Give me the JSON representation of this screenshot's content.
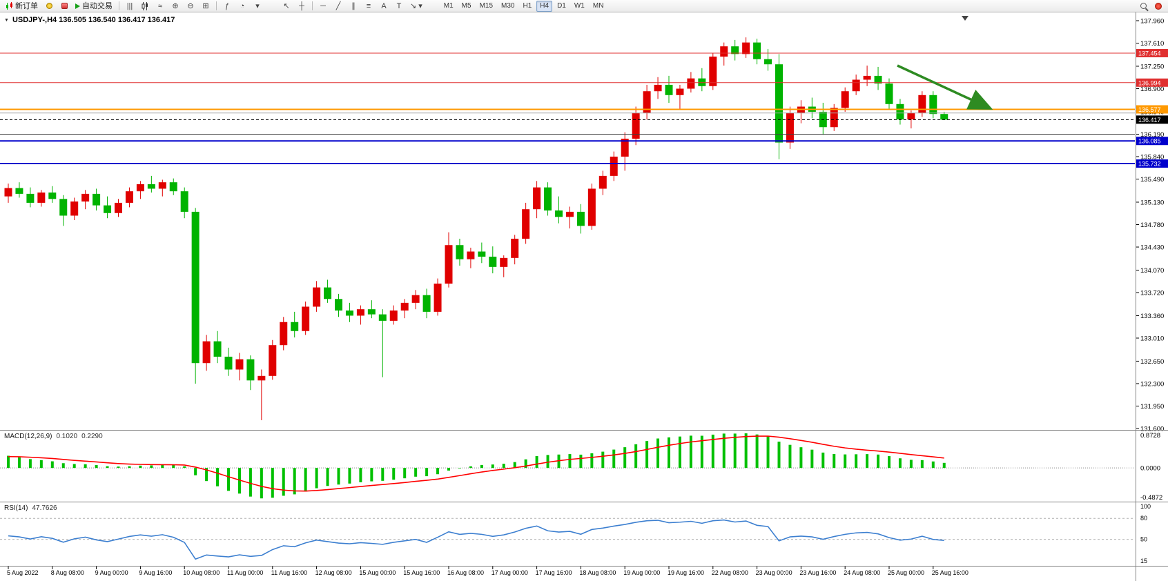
{
  "toolbar": {
    "new_order_label": "新订单",
    "autotrading_label": "自动交易",
    "timeframes": [
      "M1",
      "M5",
      "M15",
      "M30",
      "H1",
      "H4",
      "D1",
      "W1",
      "MN"
    ],
    "active_timeframe": "H4",
    "icons": {
      "dropdown": "▾",
      "bar_chart": "|||",
      "line_chart": "≈",
      "zoom_in": "⊕",
      "zoom_out": "⊖",
      "tile_windows": "⊞",
      "indicators": "ƒ",
      "clock": "◔",
      "cursor": "↖",
      "crosshair": "┼",
      "hline_tool": "─",
      "trendline_tool": "╱",
      "channel_tool": "∥",
      "fibo_tool": "≡",
      "text_tool": "A",
      "label_tool": "T",
      "arrows_tool": "↘"
    }
  },
  "chart": {
    "symbol_header": "USDJPY-,H4  136.505 136.540 136.417 136.417",
    "colors": {
      "up": "#e00000",
      "down": "#00b300",
      "background": "#ffffff",
      "axis_text": "#000000"
    },
    "hlines": [
      {
        "price": 137.454,
        "label": "137.454",
        "color": "#e03030",
        "width": 1
      },
      {
        "price": 136.994,
        "label": "136.994",
        "color": "#e03030",
        "width": 1
      },
      {
        "price": 136.577,
        "label": "136.577",
        "color": "#ff9900",
        "width": 2
      },
      {
        "price": 136.52,
        "label": "",
        "color": "#a8a8a8",
        "width": 1
      },
      {
        "price": 136.417,
        "label": "136.417",
        "color": "#000000",
        "width": 1,
        "dash": "4,3"
      },
      {
        "price": 136.19,
        "label": "",
        "color": "#404040",
        "width": 1
      },
      {
        "price": 136.085,
        "label": "136.085",
        "color": "#0000cc",
        "width": 2
      },
      {
        "price": 135.732,
        "label": "135.732",
        "color": "#0000cc",
        "width": 2
      }
    ],
    "arrow_annotation": {
      "color": "#2e8b22"
    }
  },
  "price_axis": {
    "labels": [
      "137.960",
      "137.610",
      "137.250",
      "136.900",
      "136.540",
      "136.190",
      "135.840",
      "135.490",
      "135.130",
      "134.780",
      "134.430",
      "134.070",
      "133.720",
      "133.360",
      "133.010",
      "132.650",
      "132.300",
      "131.950",
      "131.600"
    ]
  },
  "time_axis": {
    "labels": [
      "5 Aug 2022",
      "8 Aug 08:00",
      "9 Aug 00:00",
      "9 Aug 16:00",
      "10 Aug 08:00",
      "11 Aug 00:00",
      "11 Aug 16:00",
      "12 Aug 08:00",
      "15 Aug 00:00",
      "15 Aug 16:00",
      "16 Aug 08:00",
      "17 Aug 00:00",
      "17 Aug 16:00",
      "18 Aug 08:00",
      "19 Aug 00:00",
      "19 Aug 16:00",
      "22 Aug 08:00",
      "23 Aug 00:00",
      "23 Aug 16:00",
      "24 Aug 08:00",
      "25 Aug 00:00",
      "25 Aug 16:00"
    ]
  },
  "macd": {
    "label": "MACD(12,26,9)",
    "value_main": "0.1020",
    "value_signal": "0.2290",
    "axis_top": "0.8728",
    "axis_zero": "0.0000",
    "axis_bottom": "-0.4872",
    "histogram_color": "#00c000",
    "signal_color": "#ff0000"
  },
  "rsi": {
    "label": "RSI(14)",
    "value": "47.7626",
    "axis_labels": [
      "100",
      "80",
      "50",
      "15"
    ],
    "levels": [
      80,
      50
    ],
    "line_color": "#3c7fd0"
  },
  "chart_data": {
    "type": "candlestick",
    "symbol": "USDJPY-",
    "timeframe": "H4",
    "y_range": [
      131.6,
      137.96
    ],
    "x_label_every": 4,
    "ohlc": [
      [
        135.22,
        135.42,
        135.12,
        135.35
      ],
      [
        135.35,
        135.44,
        135.2,
        135.26
      ],
      [
        135.26,
        135.36,
        135.05,
        135.12
      ],
      [
        135.12,
        135.32,
        135.06,
        135.28
      ],
      [
        135.28,
        135.38,
        135.12,
        135.18
      ],
      [
        135.18,
        135.24,
        134.76,
        134.92
      ],
      [
        134.92,
        135.2,
        134.85,
        135.14
      ],
      [
        135.14,
        135.32,
        135.02,
        135.26
      ],
      [
        135.26,
        135.34,
        135.0,
        135.08
      ],
      [
        135.08,
        135.22,
        134.88,
        134.96
      ],
      [
        134.96,
        135.18,
        134.9,
        135.12
      ],
      [
        135.12,
        135.36,
        135.05,
        135.3
      ],
      [
        135.3,
        135.46,
        135.18,
        135.41
      ],
      [
        135.41,
        135.54,
        135.28,
        135.34
      ],
      [
        135.34,
        135.48,
        135.22,
        135.44
      ],
      [
        135.44,
        135.5,
        135.24,
        135.3
      ],
      [
        135.3,
        135.36,
        134.88,
        134.98
      ],
      [
        134.98,
        135.04,
        132.3,
        132.62
      ],
      [
        132.62,
        133.06,
        132.5,
        132.96
      ],
      [
        132.96,
        133.12,
        132.62,
        132.72
      ],
      [
        132.72,
        132.86,
        132.42,
        132.52
      ],
      [
        132.52,
        132.78,
        132.35,
        132.68
      ],
      [
        132.68,
        132.74,
        132.2,
        132.35
      ],
      [
        132.35,
        132.52,
        131.73,
        132.42
      ],
      [
        132.42,
        132.98,
        132.36,
        132.9
      ],
      [
        132.9,
        133.34,
        132.82,
        133.26
      ],
      [
        133.26,
        133.42,
        133.02,
        133.12
      ],
      [
        133.12,
        133.58,
        133.06,
        133.5
      ],
      [
        133.5,
        133.9,
        133.42,
        133.8
      ],
      [
        133.8,
        133.92,
        133.56,
        133.62
      ],
      [
        133.62,
        133.7,
        133.34,
        133.44
      ],
      [
        133.44,
        133.56,
        133.26,
        133.36
      ],
      [
        133.36,
        133.52,
        133.22,
        133.46
      ],
      [
        133.46,
        133.6,
        133.32,
        133.38
      ],
      [
        133.38,
        133.46,
        132.4,
        133.28
      ],
      [
        133.28,
        133.52,
        133.22,
        133.44
      ],
      [
        133.44,
        133.62,
        133.32,
        133.56
      ],
      [
        133.56,
        133.76,
        133.46,
        133.68
      ],
      [
        133.68,
        133.78,
        133.32,
        133.42
      ],
      [
        133.42,
        133.94,
        133.36,
        133.86
      ],
      [
        133.86,
        134.66,
        133.8,
        134.46
      ],
      [
        134.46,
        134.56,
        134.14,
        134.24
      ],
      [
        134.24,
        134.42,
        134.1,
        134.36
      ],
      [
        134.36,
        134.5,
        134.18,
        134.28
      ],
      [
        134.28,
        134.44,
        134.02,
        134.12
      ],
      [
        134.12,
        134.3,
        133.96,
        134.26
      ],
      [
        134.26,
        134.62,
        134.16,
        134.56
      ],
      [
        134.56,
        135.12,
        134.48,
        135.02
      ],
      [
        135.02,
        135.46,
        134.88,
        135.36
      ],
      [
        135.36,
        135.44,
        134.92,
        135.0
      ],
      [
        135.0,
        135.22,
        134.8,
        134.9
      ],
      [
        134.9,
        135.06,
        134.72,
        134.98
      ],
      [
        134.98,
        135.1,
        134.64,
        134.76
      ],
      [
        134.76,
        135.42,
        134.7,
        135.34
      ],
      [
        135.34,
        135.62,
        135.24,
        135.54
      ],
      [
        135.54,
        135.92,
        135.46,
        135.84
      ],
      [
        135.84,
        136.22,
        135.62,
        136.12
      ],
      [
        136.12,
        136.62,
        136.02,
        136.52
      ],
      [
        136.52,
        136.96,
        136.42,
        136.86
      ],
      [
        136.86,
        137.08,
        136.74,
        136.96
      ],
      [
        136.96,
        137.1,
        136.68,
        136.8
      ],
      [
        136.8,
        136.96,
        136.58,
        136.9
      ],
      [
        136.9,
        137.16,
        136.84,
        137.06
      ],
      [
        137.06,
        137.22,
        136.86,
        136.94
      ],
      [
        136.94,
        137.46,
        136.88,
        137.4
      ],
      [
        137.4,
        137.62,
        137.26,
        137.56
      ],
      [
        137.56,
        137.66,
        137.34,
        137.44
      ],
      [
        137.44,
        137.7,
        137.38,
        137.62
      ],
      [
        137.62,
        137.68,
        137.28,
        137.36
      ],
      [
        137.36,
        137.52,
        137.18,
        137.28
      ],
      [
        137.28,
        137.44,
        135.8,
        136.06
      ],
      [
        136.06,
        136.62,
        135.96,
        136.52
      ],
      [
        136.52,
        136.72,
        136.36,
        136.62
      ],
      [
        136.62,
        136.76,
        136.44,
        136.54
      ],
      [
        136.54,
        136.68,
        136.18,
        136.3
      ],
      [
        136.3,
        136.66,
        136.24,
        136.6
      ],
      [
        136.6,
        136.92,
        136.54,
        136.86
      ],
      [
        136.86,
        137.12,
        136.8,
        137.04
      ],
      [
        137.04,
        137.26,
        136.94,
        137.1
      ],
      [
        137.1,
        137.24,
        136.88,
        136.98
      ],
      [
        136.98,
        137.06,
        136.58,
        136.66
      ],
      [
        136.66,
        136.74,
        136.34,
        136.42
      ],
      [
        136.42,
        136.56,
        136.28,
        136.52
      ],
      [
        136.52,
        136.86,
        136.46,
        136.8
      ],
      [
        136.8,
        136.86,
        136.44,
        136.505
      ],
      [
        136.505,
        136.54,
        136.417,
        136.417
      ]
    ]
  }
}
